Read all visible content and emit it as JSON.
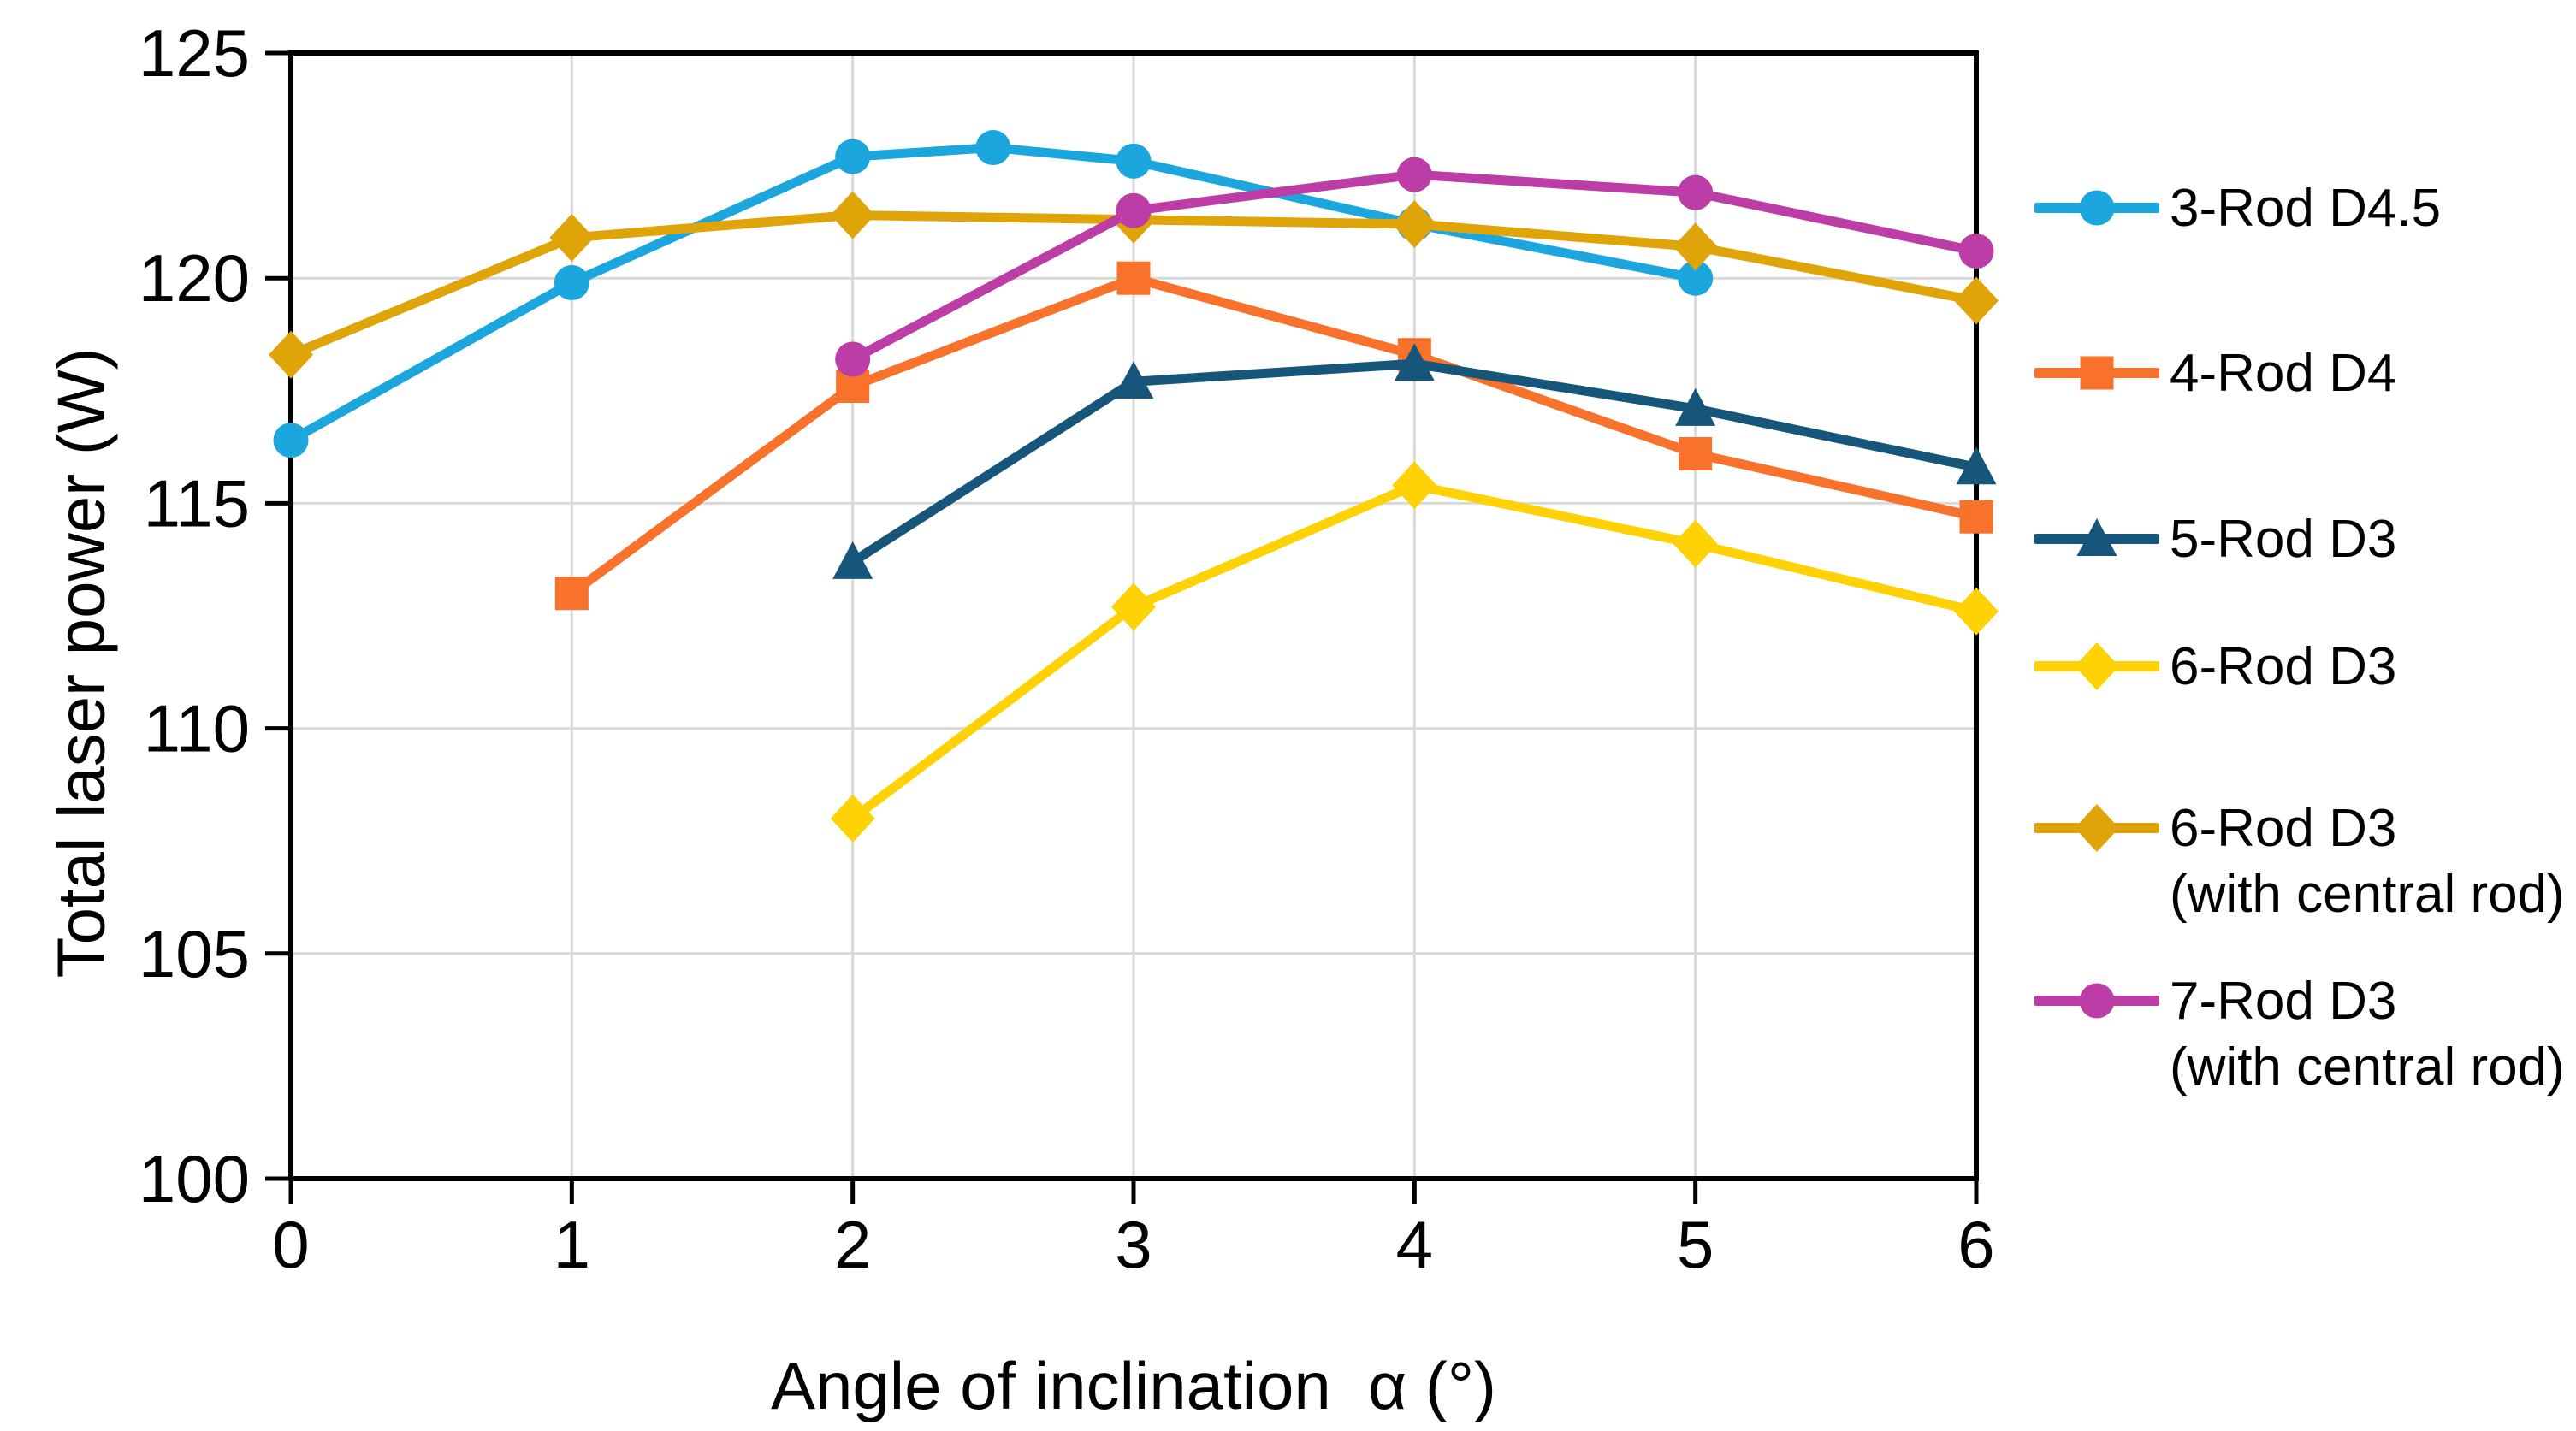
{
  "figure": {
    "background": "#FFFFFF"
  },
  "chart_data": {
    "type": "line",
    "title": "",
    "xlabel": "Angle of inclination  α (°)",
    "ylabel": "Total laser power (W)",
    "x_ticks": [
      "0",
      "1",
      "2",
      "3",
      "4",
      "5",
      "6"
    ],
    "y_ticks": [
      "100",
      "105",
      "110",
      "115",
      "120",
      "125"
    ],
    "xlim": [
      0,
      6
    ],
    "ylim": [
      100,
      125
    ],
    "grid": true,
    "grid_color": "#D9D9D9",
    "axis_color": "#000000",
    "legend_position": "right",
    "series": [
      {
        "name": "3-Rod D4.5",
        "color": "#1BA6DE",
        "marker": "circle",
        "points": [
          [
            0,
            116.4
          ],
          [
            1,
            119.9
          ],
          [
            2,
            122.7
          ],
          [
            2.5,
            122.9
          ],
          [
            3,
            122.6
          ],
          [
            4,
            121.2
          ],
          [
            5,
            120.0
          ]
        ]
      },
      {
        "name": "4-Rod D4",
        "color": "#F8722C",
        "marker": "square",
        "points": [
          [
            1,
            113.0
          ],
          [
            2,
            117.6
          ],
          [
            3,
            120.0
          ],
          [
            4,
            118.3
          ],
          [
            5,
            116.1
          ],
          [
            6,
            114.7
          ]
        ]
      },
      {
        "name": "5-Rod D3",
        "color": "#16567A",
        "marker": "triangle",
        "points": [
          [
            2,
            113.7
          ],
          [
            3,
            117.7
          ],
          [
            4,
            118.1
          ],
          [
            5,
            117.1
          ],
          [
            6,
            115.8
          ]
        ]
      },
      {
        "name": "6-Rod D3",
        "color": "#FFD205",
        "marker": "diamond",
        "points": [
          [
            2,
            108.0
          ],
          [
            3,
            112.7
          ],
          [
            4,
            115.4
          ],
          [
            5,
            114.1
          ],
          [
            6,
            112.6
          ]
        ]
      },
      {
        "name": "6-Rod D3",
        "name2": "(with central rod)",
        "color": "#DEA408",
        "marker": "diamond",
        "points": [
          [
            0,
            118.3
          ],
          [
            1,
            120.9
          ],
          [
            2,
            121.4
          ],
          [
            3,
            121.3
          ],
          [
            4,
            121.2
          ],
          [
            5,
            120.7
          ],
          [
            6,
            119.5
          ]
        ]
      },
      {
        "name": "7-Rod D3",
        "name2": "(with central rod)",
        "color": "#BC3DA5",
        "marker": "circle",
        "points": [
          [
            2,
            118.2
          ],
          [
            3,
            121.5
          ],
          [
            4,
            122.3
          ],
          [
            5,
            121.9
          ],
          [
            6,
            120.6
          ]
        ]
      }
    ]
  }
}
